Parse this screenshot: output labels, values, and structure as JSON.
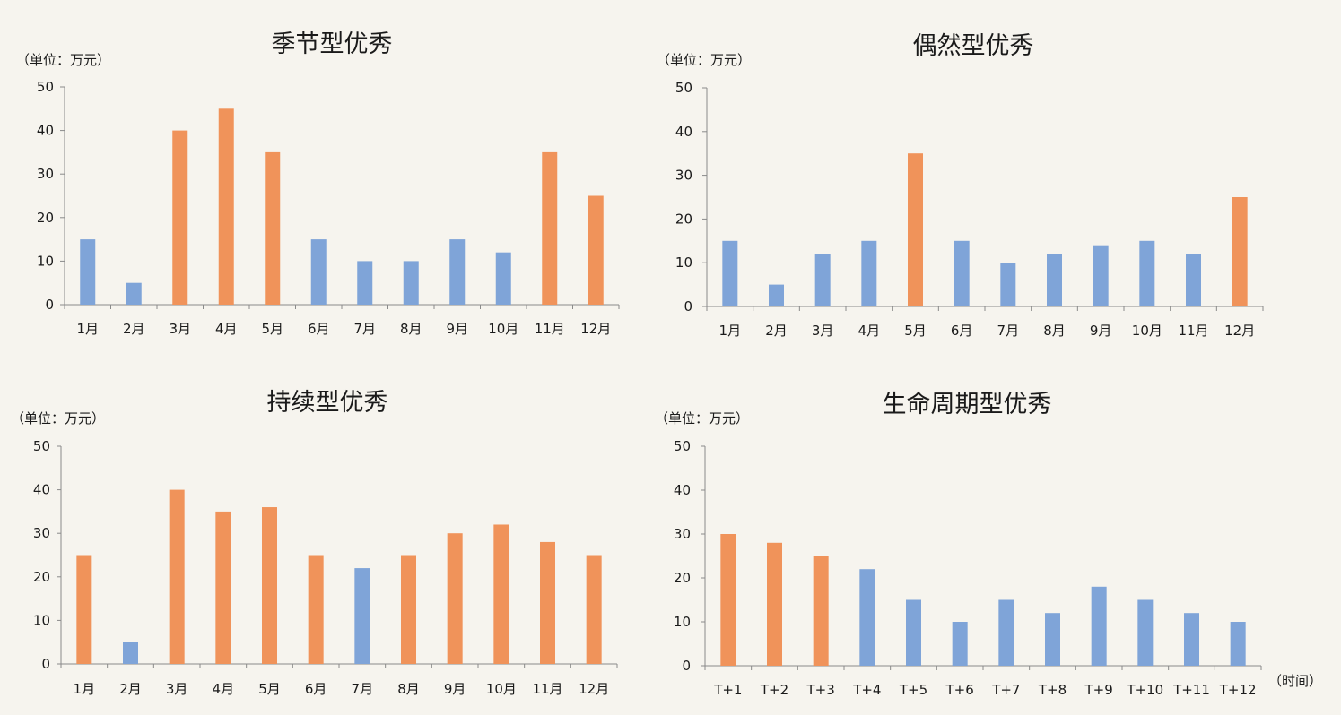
{
  "colors": {
    "orange": "#f0935a",
    "blue": "#7fa4d8"
  },
  "chart_data": [
    {
      "type": "bar",
      "title": "季节型优秀",
      "unit": "（单位：万元）",
      "x_note": "",
      "ylim": [
        0,
        50
      ],
      "yticks": [
        0,
        10,
        20,
        30,
        40,
        50
      ],
      "categories": [
        "1月",
        "2月",
        "3月",
        "4月",
        "5月",
        "6月",
        "7月",
        "8月",
        "9月",
        "10月",
        "11月",
        "12月"
      ],
      "values": [
        15,
        5,
        40,
        45,
        35,
        15,
        10,
        10,
        15,
        12,
        35,
        25
      ],
      "colors": [
        "blue",
        "blue",
        "orange",
        "orange",
        "orange",
        "blue",
        "blue",
        "blue",
        "blue",
        "blue",
        "orange",
        "orange"
      ],
      "grid": false
    },
    {
      "type": "bar",
      "title": "偶然型优秀",
      "unit": "（单位：万元）",
      "x_note": "",
      "ylim": [
        0,
        50
      ],
      "yticks": [
        0,
        10,
        20,
        30,
        40,
        50
      ],
      "categories": [
        "1月",
        "2月",
        "3月",
        "4月",
        "5月",
        "6月",
        "7月",
        "8月",
        "9月",
        "10月",
        "11月",
        "12月"
      ],
      "values": [
        15,
        5,
        12,
        15,
        35,
        15,
        10,
        12,
        14,
        15,
        12,
        25
      ],
      "colors": [
        "blue",
        "blue",
        "blue",
        "blue",
        "orange",
        "blue",
        "blue",
        "blue",
        "blue",
        "blue",
        "blue",
        "orange"
      ],
      "grid": false
    },
    {
      "type": "bar",
      "title": "持续型优秀",
      "unit": "（单位：万元）",
      "x_note": "",
      "ylim": [
        0,
        50
      ],
      "yticks": [
        0,
        10,
        20,
        30,
        40,
        50
      ],
      "categories": [
        "1月",
        "2月",
        "3月",
        "4月",
        "5月",
        "6月",
        "7月",
        "8月",
        "9月",
        "10月",
        "11月",
        "12月"
      ],
      "values": [
        25,
        5,
        40,
        35,
        36,
        25,
        22,
        25,
        30,
        32,
        28,
        25
      ],
      "colors": [
        "orange",
        "blue",
        "orange",
        "orange",
        "orange",
        "orange",
        "blue",
        "orange",
        "orange",
        "orange",
        "orange",
        "orange"
      ],
      "grid": false
    },
    {
      "type": "bar",
      "title": "生命周期型优秀",
      "unit": "（单位：万元）",
      "x_note": "（时间）",
      "ylim": [
        0,
        50
      ],
      "yticks": [
        0,
        10,
        20,
        30,
        40,
        50
      ],
      "categories": [
        "T+1",
        "T+2",
        "T+3",
        "T+4",
        "T+5",
        "T+6",
        "T+7",
        "T+8",
        "T+9",
        "T+10",
        "T+11",
        "T+12"
      ],
      "values": [
        30,
        28,
        25,
        22,
        15,
        10,
        15,
        12,
        18,
        15,
        12,
        10
      ],
      "colors": [
        "orange",
        "orange",
        "orange",
        "blue",
        "blue",
        "blue",
        "blue",
        "blue",
        "blue",
        "blue",
        "blue",
        "blue"
      ],
      "grid": false
    }
  ]
}
